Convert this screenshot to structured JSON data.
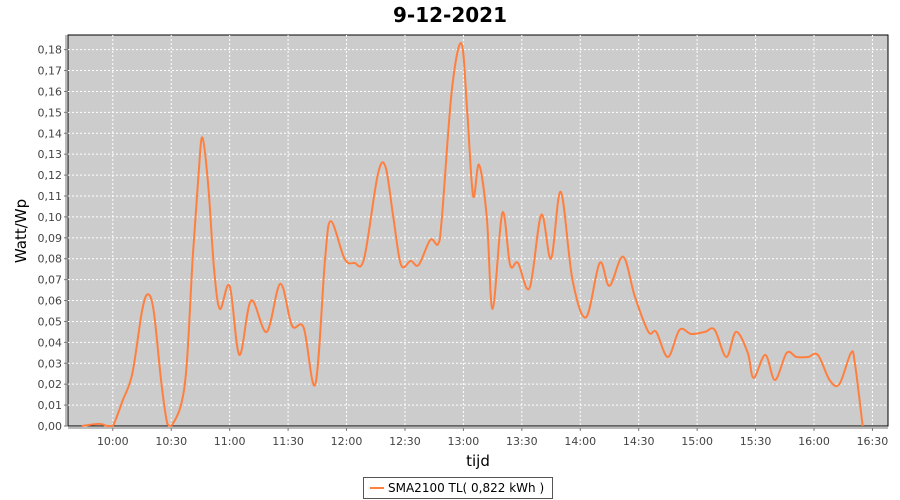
{
  "chart_data": {
    "type": "line",
    "title": "9-12-2021",
    "xlabel": "tijd",
    "ylabel": "Watt/Wp",
    "xlim": [
      "09:37",
      "16:38"
    ],
    "ylim": [
      0,
      0.187
    ],
    "grid": true,
    "legend_position": "bottom",
    "x_ticks": [
      "10:00",
      "10:30",
      "11:00",
      "11:30",
      "12:00",
      "12:30",
      "13:00",
      "13:30",
      "14:00",
      "14:30",
      "15:00",
      "15:30",
      "16:00",
      "16:30"
    ],
    "y_ticks": [
      "0,00",
      "0,01",
      "0,02",
      "0,03",
      "0,04",
      "0,05",
      "0,06",
      "0,07",
      "0,08",
      "0,09",
      "0,10",
      "0,11",
      "0,12",
      "0,13",
      "0,14",
      "0,15",
      "0,16",
      "0,17",
      "0,18"
    ],
    "colors": {
      "plot_background": "#cccccc",
      "series": "#ff7f3f",
      "grid": "#ffffff"
    },
    "series": [
      {
        "name": "SMA2100 TL( 0,822 kWh )",
        "x": [
          "09:44",
          "09:53",
          "09:57",
          "10:00",
          "10:05",
          "10:10",
          "10:15",
          "10:18",
          "10:21",
          "10:25",
          "10:28",
          "10:30",
          "10:35",
          "10:38",
          "10:41",
          "10:44",
          "10:46",
          "10:49",
          "10:52",
          "10:55",
          "11:00",
          "11:05",
          "11:11",
          "11:19",
          "11:26",
          "11:32",
          "11:38",
          "11:44",
          "11:49",
          "11:52",
          "11:59",
          "12:04",
          "12:09",
          "12:16",
          "12:20",
          "12:24",
          "12:28",
          "12:33",
          "12:37",
          "12:43",
          "12:47",
          "12:49",
          "12:54",
          "12:59",
          "13:02",
          "13:05",
          "13:08",
          "13:12",
          "13:15",
          "13:20",
          "13:24",
          "13:28",
          "13:34",
          "13:40",
          "13:45",
          "13:50",
          "13:56",
          "14:03",
          "14:10",
          "14:15",
          "14:22",
          "14:28",
          "14:35",
          "14:39",
          "14:45",
          "14:51",
          "14:57",
          "15:04",
          "15:09",
          "15:15",
          "15:20",
          "15:26",
          "15:29",
          "15:35",
          "15:40",
          "15:46",
          "15:51",
          "15:57",
          "16:02",
          "16:08",
          "16:13",
          "16:19",
          "16:21",
          "16:25"
        ],
        "values": [
          0.0,
          0.001,
          0.0,
          0.0,
          0.012,
          0.025,
          0.055,
          0.063,
          0.055,
          0.02,
          0.001,
          0.0,
          0.01,
          0.03,
          0.08,
          0.12,
          0.138,
          0.115,
          0.075,
          0.056,
          0.067,
          0.034,
          0.06,
          0.045,
          0.068,
          0.048,
          0.047,
          0.02,
          0.08,
          0.098,
          0.08,
          0.078,
          0.08,
          0.12,
          0.124,
          0.1,
          0.077,
          0.079,
          0.077,
          0.089,
          0.087,
          0.1,
          0.16,
          0.183,
          0.15,
          0.11,
          0.125,
          0.1,
          0.056,
          0.102,
          0.077,
          0.078,
          0.066,
          0.101,
          0.08,
          0.112,
          0.07,
          0.052,
          0.078,
          0.067,
          0.081,
          0.062,
          0.045,
          0.045,
          0.033,
          0.046,
          0.044,
          0.045,
          0.046,
          0.033,
          0.045,
          0.035,
          0.023,
          0.034,
          0.022,
          0.035,
          0.033,
          0.033,
          0.034,
          0.022,
          0.02,
          0.035,
          0.03,
          0.0
        ]
      }
    ]
  }
}
